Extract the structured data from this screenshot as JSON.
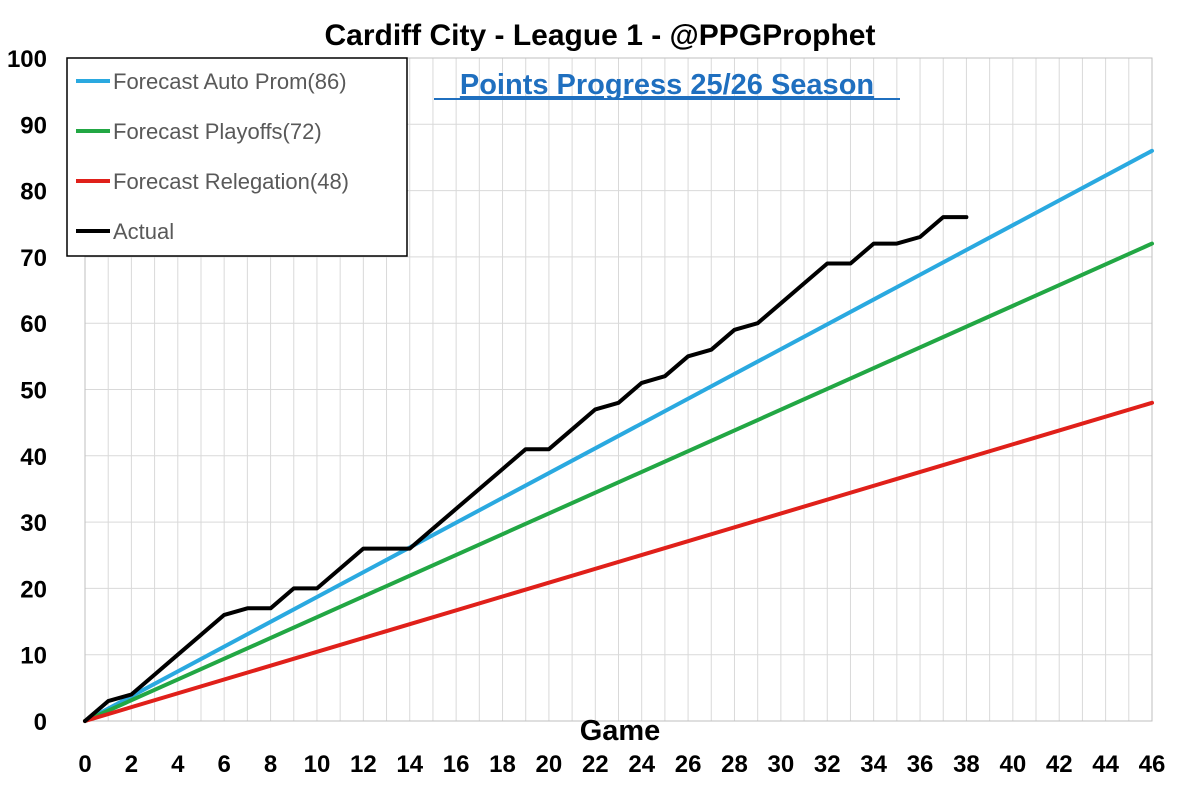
{
  "chart_data": {
    "type": "line",
    "title": "Cardiff City - League 1 - @PPGProphet",
    "subtitle": "Points Progress 25/26 Season",
    "xlabel": "Game",
    "ylabel": "",
    "xlim": [
      0,
      46
    ],
    "ylim": [
      0,
      100
    ],
    "x_ticks": [
      0,
      2,
      4,
      6,
      8,
      10,
      12,
      14,
      16,
      18,
      20,
      22,
      24,
      26,
      28,
      30,
      32,
      34,
      36,
      38,
      40,
      42,
      44,
      46
    ],
    "y_ticks": [
      0,
      10,
      20,
      30,
      40,
      50,
      60,
      70,
      80,
      90,
      100
    ],
    "grid": true,
    "legend_position": "top-left",
    "series": [
      {
        "name": "Forecast Auto Prom(86)",
        "color": "#2aa9e0",
        "x": [
          0,
          46
        ],
        "values": [
          0,
          86
        ]
      },
      {
        "name": "Forecast Playoffs(72)",
        "color": "#22a744",
        "x": [
          0,
          46
        ],
        "values": [
          0,
          72
        ]
      },
      {
        "name": "Forecast Relegation(48)",
        "color": "#e0201a",
        "x": [
          0,
          46
        ],
        "values": [
          0,
          48
        ]
      },
      {
        "name": "Actual",
        "color": "#000000",
        "x": [
          0,
          1,
          2,
          3,
          4,
          5,
          6,
          7,
          8,
          9,
          10,
          11,
          12,
          13,
          14,
          15,
          16,
          17,
          18,
          19,
          20,
          21,
          22,
          23,
          24,
          25,
          26,
          27,
          28,
          29,
          30,
          31,
          32,
          33,
          34,
          35,
          36,
          37,
          38
        ],
        "values": [
          0,
          3,
          4,
          7,
          10,
          13,
          16,
          17,
          17,
          20,
          20,
          23,
          26,
          26,
          26,
          29,
          32,
          35,
          38,
          41,
          41,
          44,
          47,
          48,
          51,
          52,
          55,
          56,
          59,
          60,
          63,
          66,
          69,
          69,
          72,
          72,
          73,
          76,
          76
        ]
      }
    ]
  }
}
